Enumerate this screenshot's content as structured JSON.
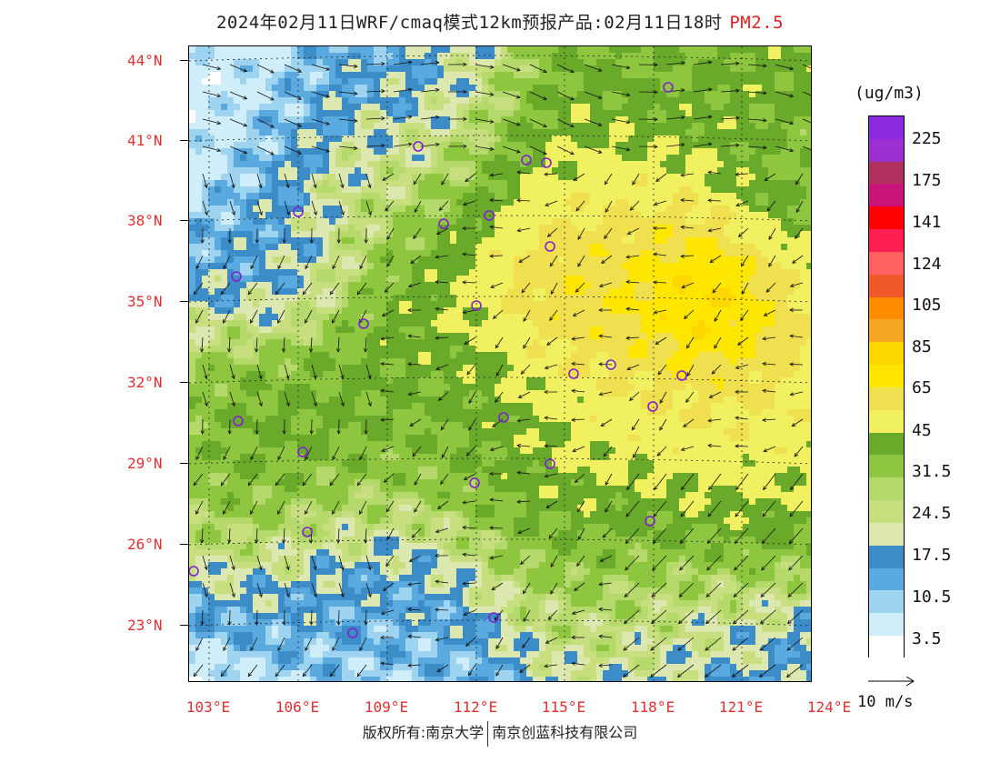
{
  "title": {
    "main": "2024年02月11日WRF/cmaq模式12km预报产品:02月11日18时",
    "variable": "PM2.5",
    "variable_color": "#e02020"
  },
  "map": {
    "lat_labels": [
      "44°N",
      "41°N",
      "38°N",
      "35°N",
      "32°N",
      "29°N",
      "26°N",
      "23°N"
    ],
    "lon_labels": [
      "103°E",
      "106°E",
      "109°E",
      "112°E",
      "115°E",
      "118°E",
      "121°E",
      "124°E"
    ],
    "lat_range": [
      21,
      44.5
    ],
    "lon_range": [
      103,
      124
    ],
    "label_color": "#e03030",
    "station_marker": "circle",
    "station_color": "#8020d0"
  },
  "legend": {
    "unit": "(ug/m3)",
    "levels": [
      "225",
      "175",
      "141",
      "124",
      "105",
      "85",
      "65",
      "45",
      "31.5",
      "24.5",
      "17.5",
      "10.5",
      "3.5"
    ],
    "colors": [
      "#8a2be2",
      "#9b30d0",
      "#b03060",
      "#c8147a",
      "#ff0000",
      "#ff1e50",
      "#ff6060",
      "#f05a28",
      "#ff8c00",
      "#f5a623",
      "#ffd700",
      "#ffe600",
      "#f0e050",
      "#f0f060",
      "#6aaa2a",
      "#8ec63f",
      "#b5d96b",
      "#c8df80",
      "#dde8b0",
      "#3c8cc8",
      "#5aaae0",
      "#9fd4f0",
      "#cfeefa",
      "#ffffff"
    ]
  },
  "wind_reference": {
    "label": "10 m/s"
  },
  "footer": {
    "left": "版权所有:南京大学",
    "right": "南京创蓝科技有限公司"
  }
}
